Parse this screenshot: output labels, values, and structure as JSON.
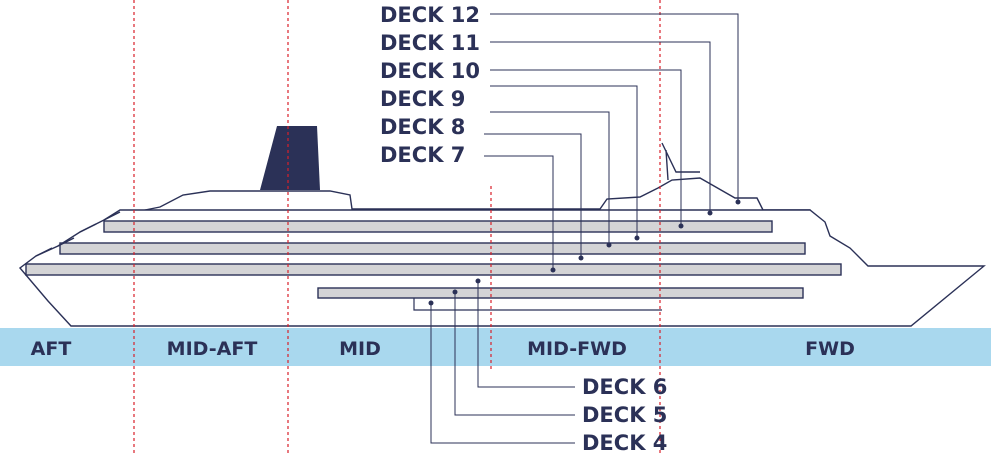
{
  "colors": {
    "navy": "#2b3157",
    "water": "#a9d8ee",
    "deck_gray": "#d4d4d6",
    "divider_red": "#d8202a"
  },
  "zones": [
    {
      "id": "aft",
      "label": "AFT"
    },
    {
      "id": "mid-aft",
      "label": "MID-AFT"
    },
    {
      "id": "mid",
      "label": "MID"
    },
    {
      "id": "mid-fwd",
      "label": "MID-FWD"
    },
    {
      "id": "fwd",
      "label": "FWD"
    }
  ],
  "decks_upper": [
    {
      "id": "12",
      "label": "DECK 12"
    },
    {
      "id": "11",
      "label": "DECK 11"
    },
    {
      "id": "10",
      "label": "DECK 10"
    },
    {
      "id": "9",
      "label": "DECK 9"
    },
    {
      "id": "8",
      "label": "DECK 8"
    },
    {
      "id": "7",
      "label": "DECK 7"
    }
  ],
  "decks_lower": [
    {
      "id": "6",
      "label": "DECK 6"
    },
    {
      "id": "5",
      "label": "DECK 5"
    },
    {
      "id": "4",
      "label": "DECK 4"
    }
  ]
}
